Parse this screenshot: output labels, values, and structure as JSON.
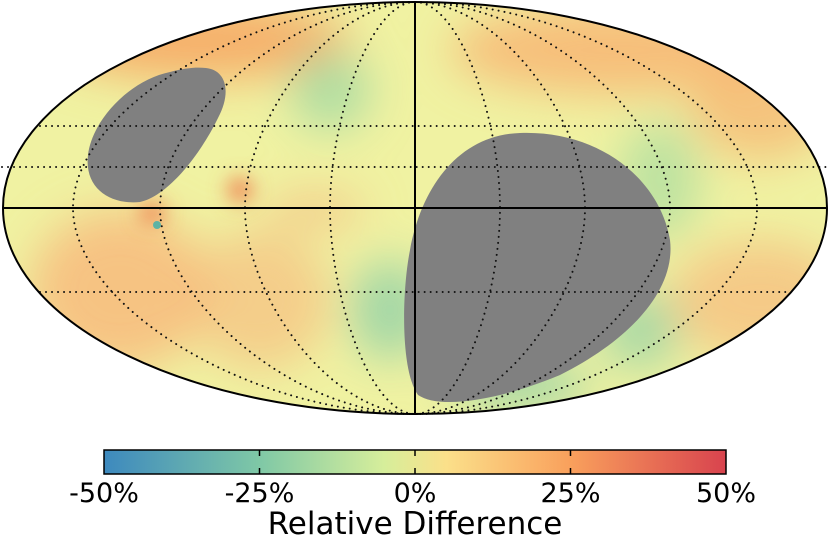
{
  "colorbar": {
    "title": "Relative Difference",
    "ticks": [
      "-50%",
      "-25%",
      "0%",
      "25%",
      "50%"
    ],
    "tick_values": [
      -50,
      -25,
      0,
      25,
      50
    ],
    "range": [
      -50,
      50
    ],
    "colors": [
      "#3d89be",
      "#7fc8a6",
      "#d6ee9b",
      "#fbe08a",
      "#f9a05c",
      "#d8434e"
    ]
  },
  "map": {
    "projection": "Mollweide",
    "masked_color": "#808080",
    "background_color": "#f0f2a2"
  }
}
